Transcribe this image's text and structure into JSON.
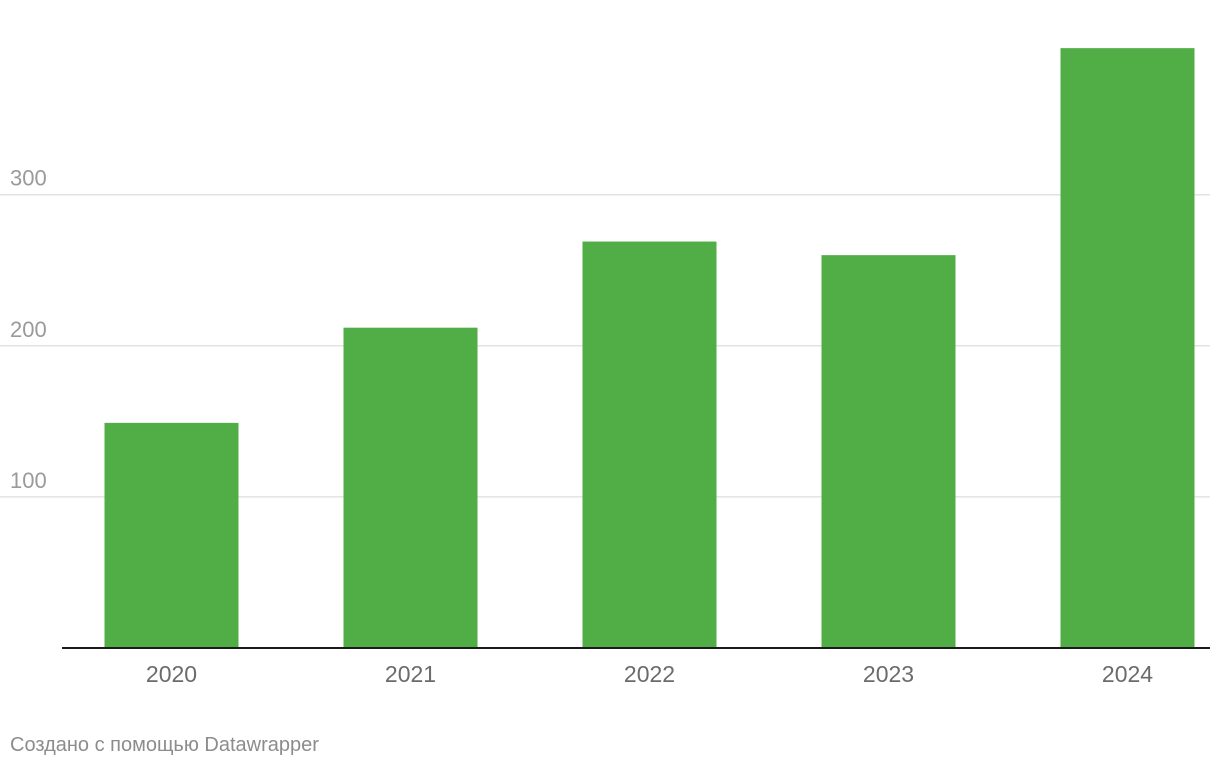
{
  "chart_data": {
    "type": "bar",
    "categories": [
      "2020",
      "2021",
      "2022",
      "2023",
      "2024"
    ],
    "values": [
      149,
      212,
      269,
      260,
      397
    ],
    "title": "",
    "xlabel": "",
    "ylabel": "",
    "ylim": [
      0,
      400
    ],
    "yticks": [
      "100",
      "200",
      "300"
    ],
    "ytick_values": [
      100,
      200,
      300
    ],
    "grid": true,
    "legend": "none",
    "colors": {
      "bar": "#51ae47",
      "grid": "#e3e3e3",
      "baseline": "#1a1a1a"
    }
  },
  "footer": {
    "credit": "Создано с помощью Datawrapper"
  }
}
